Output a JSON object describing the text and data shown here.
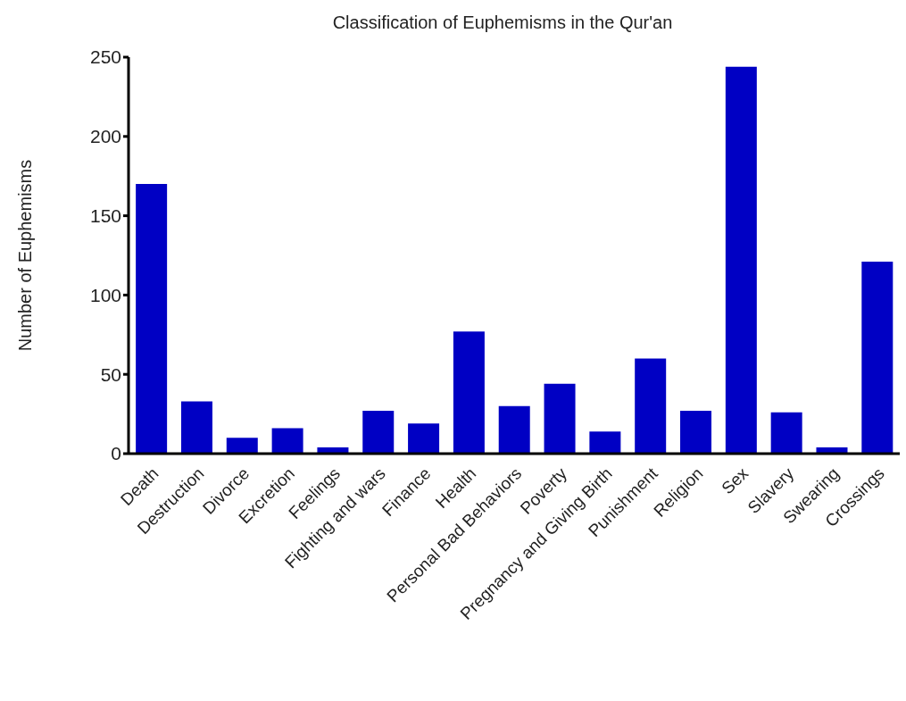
{
  "chart_data": {
    "type": "bar",
    "title": "Classification of Euphemisms in the Qur'an",
    "ylabel": "Number of Euphemisms",
    "categories": [
      "Death",
      "Destruction",
      "Divorce",
      "Excretion",
      "Feelings",
      "Fighting and wars",
      "Finance",
      "Health",
      "Personal Bad Behaviors",
      "Poverty",
      "Pregnancy and Giving Birth",
      "Punishment",
      "Religion",
      "Sex",
      "Slavery",
      "Swearing",
      "Crossings"
    ],
    "values": [
      170,
      33,
      10,
      16,
      4,
      27,
      19,
      77,
      30,
      44,
      14,
      60,
      27,
      244,
      26,
      4,
      121
    ],
    "color": "#0000c4",
    "ylim": [
      0,
      250
    ],
    "yticks": [
      0,
      50,
      100,
      150,
      200,
      250
    ],
    "grid": false,
    "legend": false
  }
}
